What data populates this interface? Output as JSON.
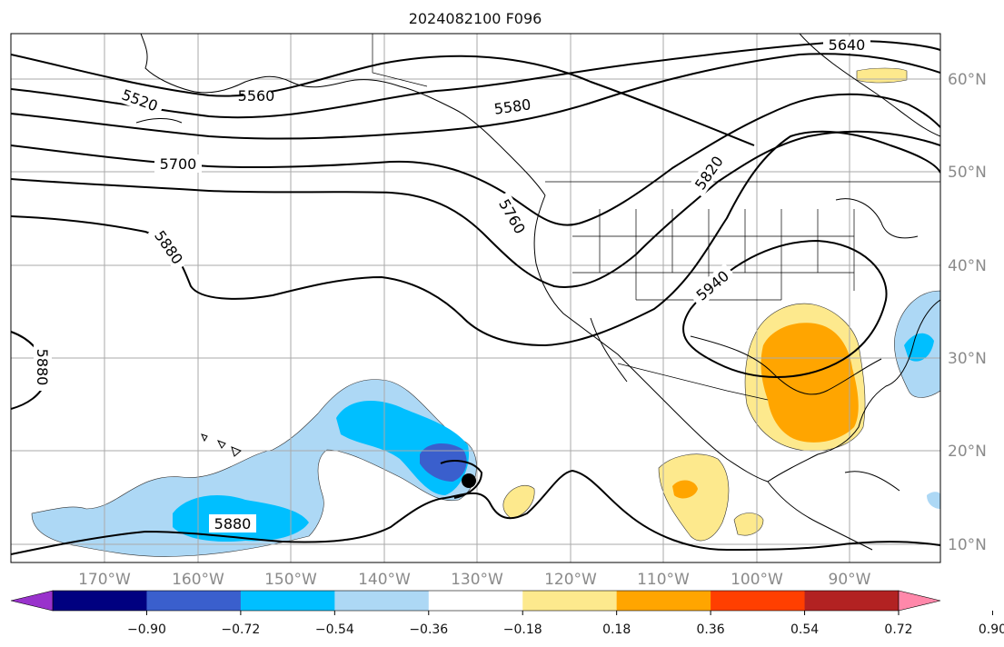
{
  "title": "2024082100 F096",
  "map": {
    "lon_labels": [
      "170°W",
      "160°W",
      "150°W",
      "140°W",
      "130°W",
      "120°W",
      "110°W",
      "100°W",
      "90°W"
    ],
    "lat_labels": [
      "60°N",
      "50°N",
      "40°N",
      "30°N",
      "20°N",
      "10°N"
    ],
    "contour_labels": [
      "5520",
      "5560",
      "5580",
      "5640",
      "5700",
      "5760",
      "5820",
      "5880",
      "5880",
      "5880",
      "5940"
    ],
    "marker": "storm-center-dot"
  },
  "colorbar": {
    "ticks": [
      "−0.90",
      "−0.72",
      "−0.54",
      "−0.36",
      "−0.18",
      "0.18",
      "0.36",
      "0.54",
      "0.72",
      "0.90"
    ],
    "colors": [
      "#9932cc",
      "#000080",
      "#3a5fcd",
      "#00bfff",
      "#add8f5",
      "#ffffff",
      "#fde98d",
      "#ffa500",
      "#ff3f00",
      "#b22222",
      "#ff88aa"
    ]
  }
}
